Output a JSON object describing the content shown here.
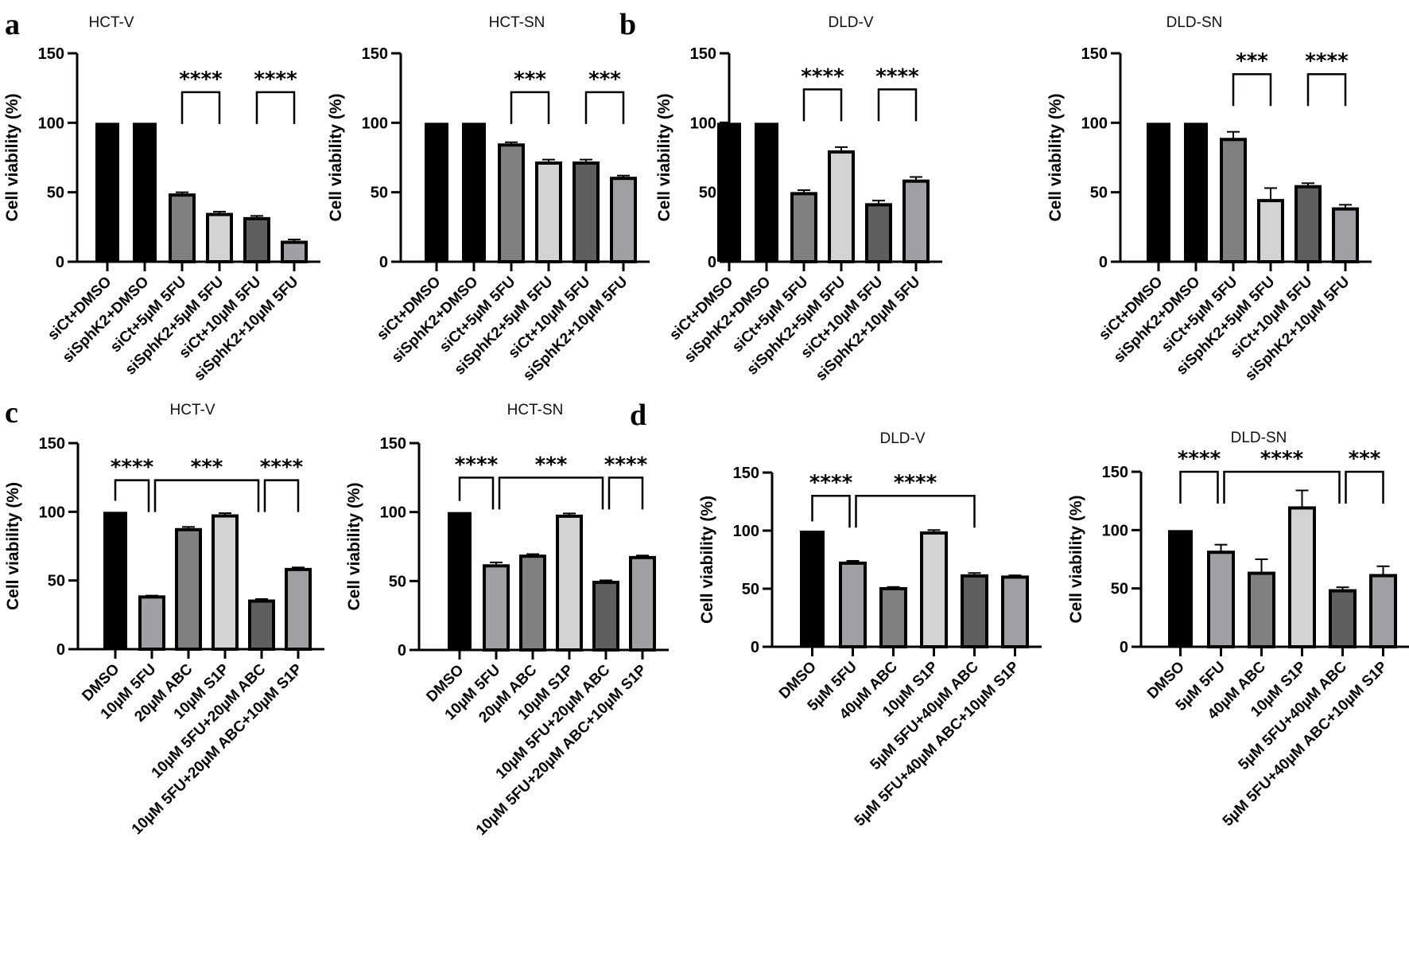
{
  "figure": {
    "panel_letters": [
      "a",
      "b",
      "c",
      "d"
    ]
  },
  "colors": {
    "black": "#000000",
    "mid_gray": "#808080",
    "light_gray": "#d3d3d3",
    "dark_gray": "#5f5f5f",
    "slate_gray": "#a0a0a4",
    "outline": "#000000"
  },
  "chart_data": [
    {
      "id": "a-hct-v",
      "panel": "a",
      "type": "bar",
      "title": "HCT-V",
      "ylabel": "Cell viability (%)",
      "xlabel": "",
      "ylim": [
        0,
        150
      ],
      "yticks": [
        0,
        50,
        100,
        150
      ],
      "grid": false,
      "categories": [
        "siCt+DMSO",
        "siSphK2+DMSO",
        "siCt+5µM 5FU",
        "siSphK2+5µM 5FU",
        "siCt+10µM 5FU",
        "siSphK2+10µM 5FU"
      ],
      "values": [
        100,
        100,
        48,
        34,
        31,
        14
      ],
      "errors": [
        0,
        0,
        2,
        2,
        2,
        2
      ],
      "bar_colors": [
        "black",
        "black",
        "mid_gray",
        "light_gray",
        "dark_gray",
        "slate_gray"
      ],
      "significance": [
        {
          "from": 2,
          "to": 3,
          "label": "****",
          "level": 122
        },
        {
          "from": 4,
          "to": 5,
          "label": "****",
          "level": 122
        }
      ]
    },
    {
      "id": "a-hct-sn",
      "panel": "a",
      "type": "bar",
      "title": "HCT-SN",
      "ylabel": "Cell viability (%)",
      "xlabel": "",
      "ylim": [
        0,
        150
      ],
      "yticks": [
        0,
        50,
        100,
        150
      ],
      "grid": false,
      "categories": [
        "siCt+DMSO",
        "siSphK2+DMSO",
        "siCt+5µM 5FU",
        "siSphK2+5µM 5FU",
        "siCt+10µM 5FU",
        "siSphK2+10µM 5FU"
      ],
      "values": [
        100,
        100,
        84,
        71,
        71,
        60
      ],
      "errors": [
        0,
        0,
        2,
        2.5,
        2.5,
        2
      ],
      "bar_colors": [
        "black",
        "black",
        "mid_gray",
        "light_gray",
        "dark_gray",
        "slate_gray"
      ],
      "significance": [
        {
          "from": 2,
          "to": 3,
          "label": "***",
          "level": 122
        },
        {
          "from": 4,
          "to": 5,
          "label": "***",
          "level": 122
        }
      ]
    },
    {
      "id": "b-dld-v",
      "panel": "b",
      "type": "bar",
      "title": "DLD-V",
      "ylabel": "Cell viability (%)",
      "xlabel": "",
      "ylim": [
        0,
        150
      ],
      "yticks": [
        0,
        50,
        100,
        150
      ],
      "grid": false,
      "categories": [
        "siCt+DMSO",
        "siSphK2+DMSO",
        "siCt+5µM 5FU",
        "siSphK2+5µM 5FU",
        "siCt+10µM 5FU",
        "siSphK2+10µM 5FU"
      ],
      "values": [
        100,
        100,
        49,
        79,
        41,
        58
      ],
      "errors": [
        0,
        0,
        2.5,
        3.5,
        3,
        3
      ],
      "bar_colors": [
        "black",
        "black",
        "mid_gray",
        "light_gray",
        "dark_gray",
        "slate_gray"
      ],
      "significance": [
        {
          "from": 2,
          "to": 3,
          "label": "****",
          "level": 124
        },
        {
          "from": 4,
          "to": 5,
          "label": "****",
          "level": 124
        }
      ]
    },
    {
      "id": "b-dld-sn",
      "panel": "b",
      "type": "bar",
      "title": "DLD-SN",
      "ylabel": "Cell viability (%)",
      "xlabel": "",
      "ylim": [
        0,
        150
      ],
      "yticks": [
        0,
        50,
        100,
        150
      ],
      "grid": false,
      "categories": [
        "siCt+DMSO",
        "siSphK2+DMSO",
        "siCt+5µM 5FU",
        "siSphK2+5µM 5FU",
        "siCt+10µM 5FU",
        "siSphK2+10µM 5FU"
      ],
      "values": [
        100,
        100,
        88,
        44,
        54,
        38
      ],
      "errors": [
        0,
        0,
        5.5,
        9,
        2.5,
        3
      ],
      "bar_colors": [
        "black",
        "black",
        "mid_gray",
        "light_gray",
        "dark_gray",
        "slate_gray"
      ],
      "significance": [
        {
          "from": 2,
          "to": 3,
          "label": "***",
          "level": 135
        },
        {
          "from": 4,
          "to": 5,
          "label": "****",
          "level": 135
        }
      ]
    },
    {
      "id": "c-hct-v",
      "panel": "c",
      "type": "bar",
      "title": "HCT-V",
      "ylabel": "Cell viability (%)",
      "xlabel": "",
      "ylim": [
        0,
        150
      ],
      "yticks": [
        0,
        50,
        100,
        150
      ],
      "grid": false,
      "categories": [
        "DMSO",
        "10µM 5FU",
        "20µM ABC",
        "10µM S1P",
        "10µM 5FU+20µM ABC",
        "10µM 5FU+20µM ABC+10µM S1P"
      ],
      "values": [
        100,
        38,
        87,
        97,
        35,
        58
      ],
      "errors": [
        0,
        1,
        2,
        2,
        1.5,
        1.5
      ],
      "bar_colors": [
        "black",
        "slate_gray",
        "mid_gray",
        "light_gray",
        "dark_gray",
        "slate_gray"
      ],
      "significance": [
        {
          "from": 0,
          "to": 1,
          "label": "****",
          "level": 123
        },
        {
          "from": 1,
          "to": 4,
          "label": "***",
          "level": 123
        },
        {
          "from": 4,
          "to": 5,
          "label": "****",
          "level": 123
        }
      ]
    },
    {
      "id": "c-hct-sn",
      "panel": "c",
      "type": "bar",
      "title": "HCT-SN",
      "ylabel": "Cell viability (%)",
      "xlabel": "",
      "ylim": [
        0,
        150
      ],
      "yticks": [
        0,
        50,
        100,
        150
      ],
      "grid": false,
      "categories": [
        "DMSO",
        "10µM 5FU",
        "20µM ABC",
        "10µM S1P",
        "10µM 5FU+20µM ABC",
        "10µM 5FU+20µM ABC+10µM S1P"
      ],
      "values": [
        100,
        61,
        68,
        97,
        49,
        67
      ],
      "errors": [
        0,
        2.5,
        1.5,
        2,
        1.5,
        1.5
      ],
      "bar_colors": [
        "black",
        "slate_gray",
        "mid_gray",
        "light_gray",
        "dark_gray",
        "slate_gray"
      ],
      "significance": [
        {
          "from": 0,
          "to": 1,
          "label": "****",
          "level": 125
        },
        {
          "from": 1,
          "to": 4,
          "label": "***",
          "level": 125
        },
        {
          "from": 4,
          "to": 5,
          "label": "****",
          "level": 125
        }
      ]
    },
    {
      "id": "d-dld-v",
      "panel": "d",
      "type": "bar",
      "title": "DLD-V",
      "ylabel": "Cell viability (%)",
      "xlabel": "",
      "ylim": [
        0,
        150
      ],
      "yticks": [
        0,
        50,
        100,
        150
      ],
      "grid": false,
      "categories": [
        "DMSO",
        "5µM 5FU",
        "40µM ABC",
        "10µM S1P",
        "5µM 5FU+40µM ABC",
        "5µM 5FU+40µM ABC+10µM S1P"
      ],
      "values": [
        100,
        72,
        50,
        98,
        61,
        60
      ],
      "errors": [
        0,
        2,
        1.5,
        2.5,
        2.5,
        1.5
      ],
      "bar_colors": [
        "black",
        "slate_gray",
        "mid_gray",
        "light_gray",
        "dark_gray",
        "slate_gray"
      ],
      "significance": [
        {
          "from": 0,
          "to": 1,
          "label": "****",
          "level": 130
        },
        {
          "from": 1,
          "to": 4,
          "label": "****",
          "level": 130
        }
      ]
    },
    {
      "id": "d-dld-sn",
      "panel": "d",
      "type": "bar",
      "title": "DLD-SN",
      "ylabel": "Cell viability (%)",
      "xlabel": "",
      "ylim": [
        0,
        150
      ],
      "yticks": [
        0,
        50,
        100,
        150
      ],
      "grid": false,
      "categories": [
        "DMSO",
        "5µM 5FU",
        "40µM ABC",
        "10µM S1P",
        "5µM 5FU+40µM ABC",
        "5µM 5FU+40µM ABC+10µM S1P"
      ],
      "values": [
        100,
        81,
        63,
        119,
        48,
        61
      ],
      "errors": [
        0,
        6.5,
        12,
        15,
        3,
        8
      ],
      "bar_colors": [
        "black",
        "slate_gray",
        "mid_gray",
        "light_gray",
        "dark_gray",
        "slate_gray"
      ],
      "significance": [
        {
          "from": 0,
          "to": 1,
          "label": "****",
          "level": 150
        },
        {
          "from": 1,
          "to": 4,
          "label": "****",
          "level": 150
        },
        {
          "from": 4,
          "to": 5,
          "label": "***",
          "level": 150
        }
      ]
    }
  ]
}
